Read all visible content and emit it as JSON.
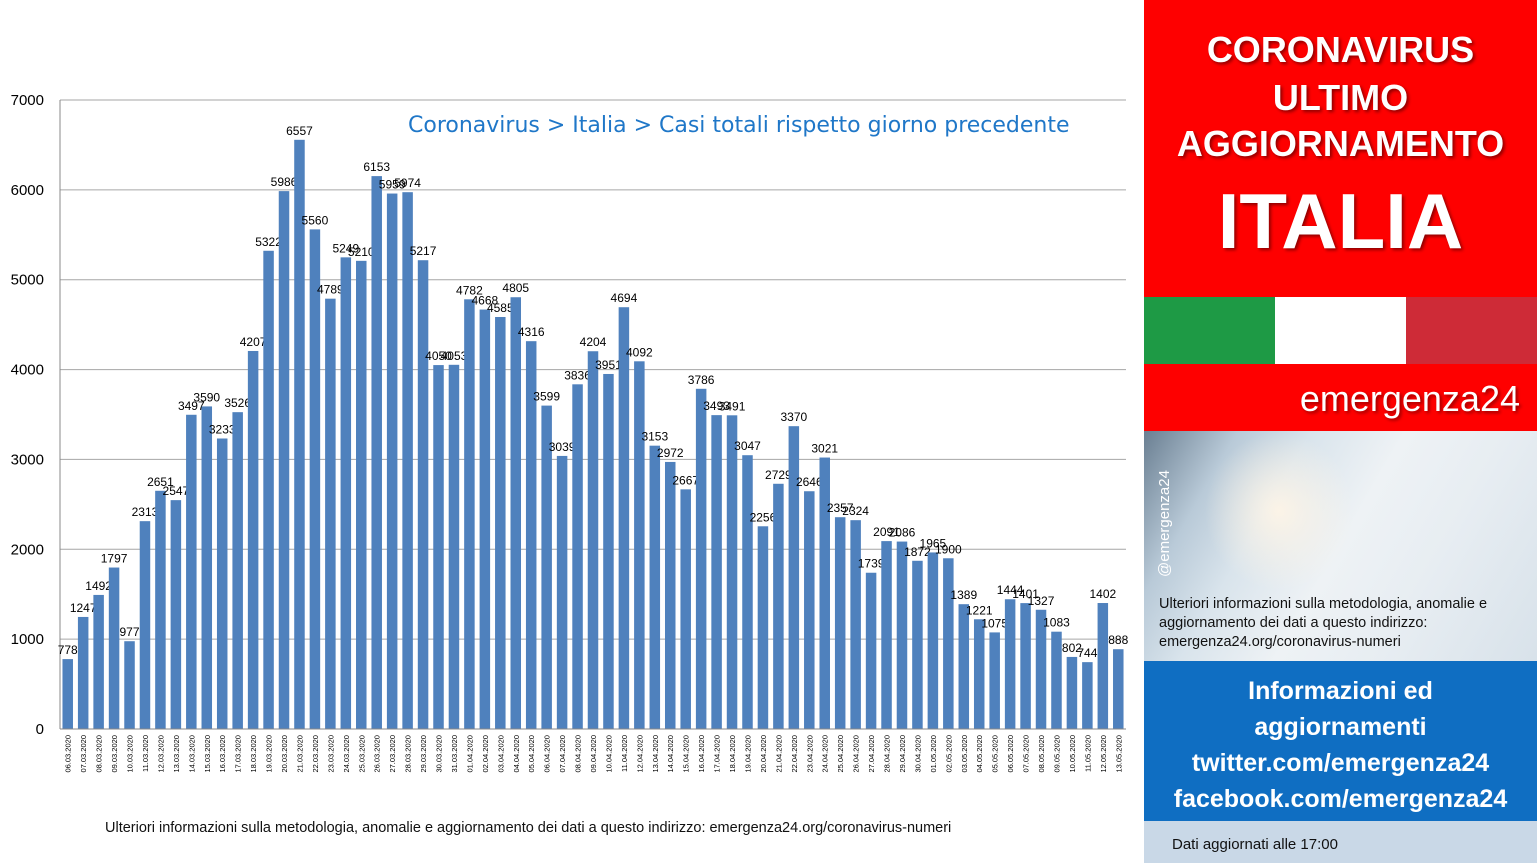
{
  "chart_data": {
    "type": "bar",
    "title": "Coronavirus > Italia > Casi totali rispetto giorno precedente",
    "ylim": [
      0,
      7000
    ],
    "yticks": [
      0,
      1000,
      2000,
      3000,
      4000,
      5000,
      6000,
      7000
    ],
    "grid": true,
    "bar_color": "#4f81bd",
    "categories": [
      "06.03.2020",
      "07.03.2020",
      "08.03.2020",
      "09.03.2020",
      "10.03.2020",
      "11.03.2020",
      "12.03.2020",
      "13.03.2020",
      "14.03.2020",
      "15.03.2020",
      "16.03.2020",
      "17.03.2020",
      "18.03.2020",
      "19.03.2020",
      "20.03.2020",
      "21.03.2020",
      "22.03.2020",
      "23.03.2020",
      "24.03.2020",
      "25.03.2020",
      "26.03.2020",
      "27.03.2020",
      "28.03.2020",
      "29.03.2020",
      "30.03.2020",
      "31.03.2020",
      "01.04.2020",
      "02.04.2020",
      "03.04.2020",
      "04.04.2020",
      "05.04.2020",
      "06.04.2020",
      "07.04.2020",
      "08.04.2020",
      "09.04.2020",
      "10.04.2020",
      "11.04.2020",
      "12.04.2020",
      "13.04.2020",
      "14.04.2020",
      "15.04.2020",
      "16.04.2020",
      "17.04.2020",
      "18.04.2020",
      "19.04.2020",
      "20.04.2020",
      "21.04.2020",
      "22.04.2020",
      "23.04.2020",
      "24.04.2020",
      "25.04.2020",
      "26.04.2020",
      "27.04.2020",
      "28.04.2020",
      "29.04.2020",
      "30.04.2020",
      "01.05.2020",
      "02.05.2020",
      "03.05.2020",
      "04.05.2020",
      "05.05.2020",
      "06.05.2020",
      "07.05.2020",
      "08.05.2020",
      "09.05.2020",
      "10.05.2020",
      "11.05.2020",
      "12.05.2020",
      "13.05.2020"
    ],
    "values": [
      778,
      1247,
      1492,
      1797,
      977,
      2313,
      2651,
      2547,
      3497,
      3590,
      3233,
      3526,
      4207,
      5322,
      5986,
      6557,
      5560,
      4789,
      5249,
      5210,
      6153,
      5959,
      5974,
      5217,
      4050,
      4053,
      4782,
      4668,
      4585,
      4805,
      4316,
      3599,
      3039,
      3836,
      4204,
      3951,
      4694,
      4092,
      3153,
      2972,
      2667,
      3786,
      3493,
      3491,
      3047,
      2256,
      2729,
      3370,
      2646,
      3021,
      2357,
      2324,
      1739,
      2091,
      2086,
      1872,
      1965,
      1900,
      1389,
      1221,
      1075,
      1444,
      1401,
      1327,
      1083,
      802,
      744,
      1402,
      888
    ]
  },
  "footer_note": "Ulteriori informazioni sulla metodologia, anomalie e aggiornamento dei dati a questo indirizzo: emergenza24.org/coronavirus-numeri",
  "sidebar": {
    "headline_1": "CORONAVIRUS",
    "headline_2": "ULTIMO",
    "headline_3": "AGGIORNAMENTO",
    "headline_4": "ITALIA",
    "brand": "emergenza24",
    "handle": "@emergenza24",
    "note": "Ulteriori informazioni sulla metodologia, anomalie e aggiornamento dei dati a questo indirizzo: emergenza24.org/coronavirus-numeri",
    "info_1": "Informazioni ed",
    "info_2": "aggiornamenti",
    "info_3": "twitter.com/emergenza24",
    "info_4": "facebook.com/emergenza24",
    "updated": "Dati aggiornati alle 17:00",
    "colors": {
      "red": "#fe0000",
      "blue": "#0f6ec2",
      "green": "#1e9a45",
      "flag_red": "#ce2b37"
    }
  }
}
